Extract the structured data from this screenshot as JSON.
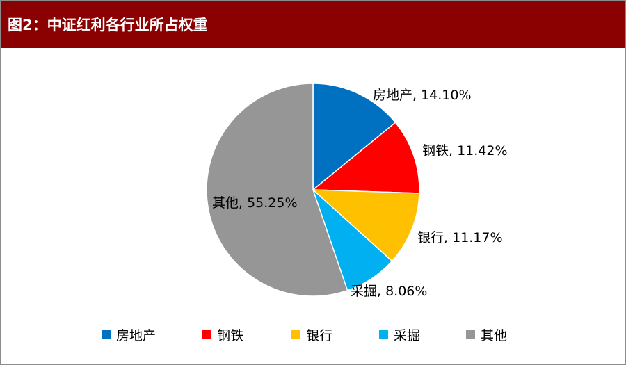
{
  "title": "图2：中证红利各行业所占权重",
  "colors": {
    "title_bar": "#8b0000",
    "title_text": "#ffffff"
  },
  "chart_data": {
    "type": "pie",
    "start_angle_deg": 0,
    "direction": "clockwise",
    "slices": [
      {
        "name": "房地产",
        "value": 14.1,
        "label": "房地产, 14.10%",
        "color": "#0070c0"
      },
      {
        "name": "钢铁",
        "value": 11.42,
        "label": "钢铁, 11.42%",
        "color": "#ff0000"
      },
      {
        "name": "银行",
        "value": 11.17,
        "label": "银行, 11.17%",
        "color": "#ffc000"
      },
      {
        "name": "采掘",
        "value": 8.06,
        "label": "采掘, 8.06%",
        "color": "#00b0f0"
      },
      {
        "name": "其他",
        "value": 55.25,
        "label": "其他, 55.25%",
        "color": "#969696"
      }
    ],
    "legend": {
      "placement": "bottom",
      "entries": [
        "房地产",
        "钢铁",
        "银行",
        "采掘",
        "其他"
      ]
    }
  }
}
